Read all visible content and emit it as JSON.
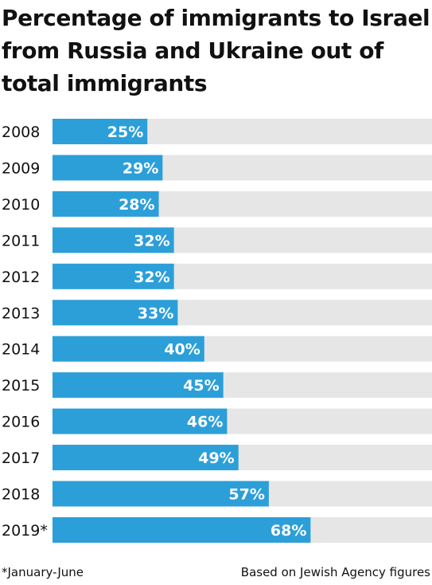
{
  "title": "Percentage of immigrants to Israel from Russia and Ukraine out of total immigrants",
  "footnote": "*January-June",
  "source": "Based on Jewish Agency figures",
  "colors": {
    "bar": "#2c9fd9",
    "track": "#e6e6e6",
    "value_label": "#ffffff",
    "category_label": "#111111"
  },
  "chart_data": {
    "type": "bar",
    "orientation": "horizontal",
    "categories": [
      "2008",
      "2009",
      "2010",
      "2011",
      "2012",
      "2013",
      "2014",
      "2015",
      "2016",
      "2017",
      "2018",
      "2019*"
    ],
    "values": [
      25,
      29,
      28,
      32,
      32,
      33,
      40,
      45,
      46,
      49,
      57,
      68
    ],
    "value_labels": [
      "25%",
      "29%",
      "28%",
      "32%",
      "32%",
      "33%",
      "40%",
      "45%",
      "46%",
      "49%",
      "57%",
      "68%"
    ],
    "xlim": [
      0,
      100
    ],
    "unit": "%",
    "grid": false,
    "legend": "none"
  }
}
